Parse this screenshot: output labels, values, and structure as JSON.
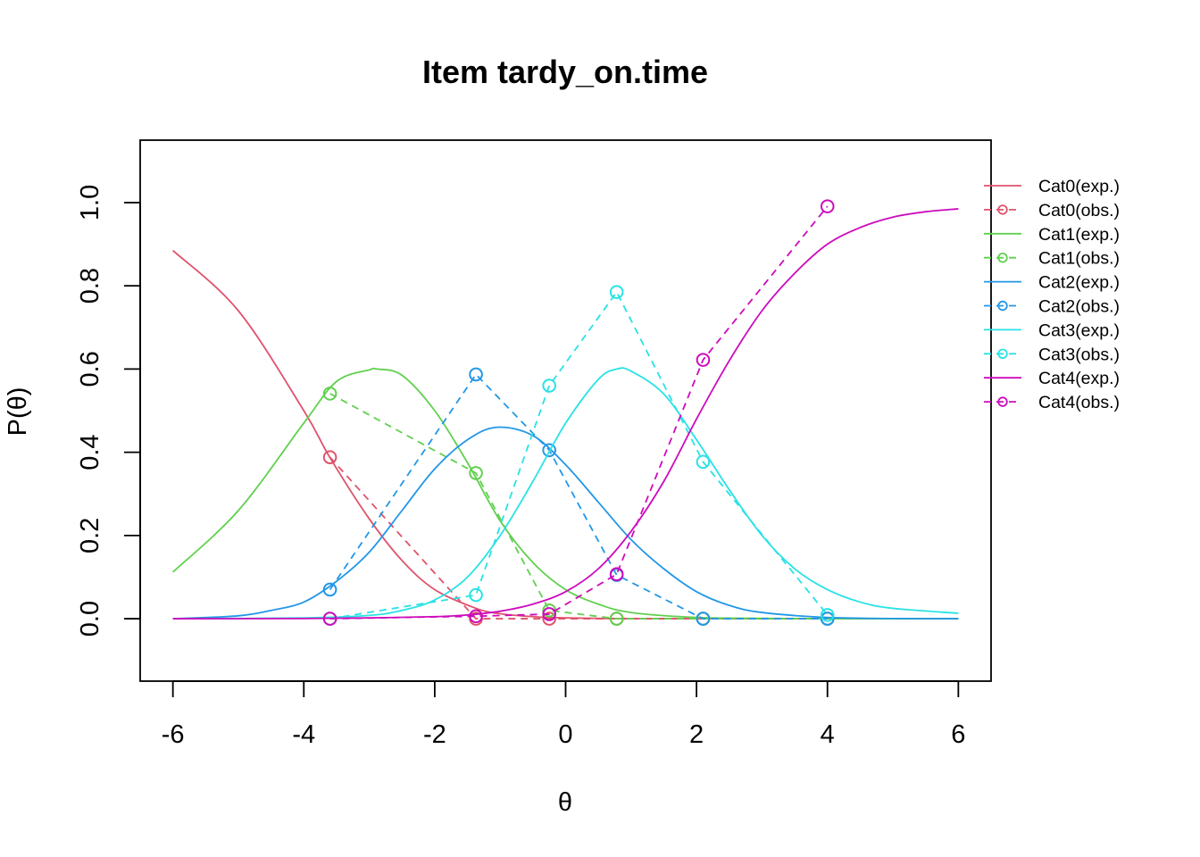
{
  "chart_data": {
    "type": "line",
    "title": "Item tardy_on.time",
    "xlabel": "θ",
    "ylabel": "P(θ)",
    "xlim": [
      -6.5,
      6.5
    ],
    "ylim": [
      -0.15,
      1.15
    ],
    "x_ticks": [
      -6,
      -4,
      -2,
      0,
      2,
      4,
      6
    ],
    "x_tick_labels": [
      "-6",
      "-4",
      "-2",
      "0",
      "2",
      "4",
      "6"
    ],
    "y_ticks": [
      0.0,
      0.2,
      0.4,
      0.6,
      0.8,
      1.0
    ],
    "y_tick_labels": [
      "0.0",
      "0.2",
      "0.4",
      "0.6",
      "0.8",
      "1.0"
    ],
    "grid": false,
    "legend_position": "right",
    "x_range_expected": [
      -6,
      6
    ],
    "observed_x": [
      -3.6,
      -1.37,
      -0.25,
      0.78,
      2.1,
      4.0
    ],
    "series": [
      {
        "name": "Cat0(exp.)",
        "kind": "expected",
        "color": "#DF536B",
        "x": [
          -6,
          -5,
          -4,
          -3.6,
          -3,
          -2.5,
          -2,
          -1.37,
          -1,
          -0.5,
          0,
          1,
          2,
          3,
          4,
          5,
          6
        ],
        "y": [
          0.885,
          0.74,
          0.5,
          0.387,
          0.24,
          0.14,
          0.07,
          0.025,
          0.012,
          0.005,
          0.002,
          0,
          0,
          0,
          0,
          0,
          0
        ]
      },
      {
        "name": "Cat0(obs.)",
        "kind": "observed",
        "color": "#DF536B",
        "x": [
          -3.6,
          -1.37,
          -0.25,
          0.78,
          2.1,
          4.0
        ],
        "y": [
          0.388,
          0.0,
          0.0,
          0.0,
          0.0,
          0.0
        ]
      },
      {
        "name": "Cat1(exp.)",
        "kind": "expected",
        "color": "#61D04F",
        "x": [
          -6,
          -5,
          -4,
          -3.5,
          -3,
          -2.88,
          -2.5,
          -2,
          -1.5,
          -1,
          -0.5,
          0,
          0.5,
          1,
          2,
          3,
          4,
          5,
          6
        ],
        "y": [
          0.112,
          0.26,
          0.47,
          0.57,
          0.598,
          0.6,
          0.585,
          0.5,
          0.375,
          0.235,
          0.135,
          0.07,
          0.035,
          0.015,
          0.003,
          0.001,
          0,
          0,
          0
        ]
      },
      {
        "name": "Cat1(obs.)",
        "kind": "observed",
        "color": "#61D04F",
        "x": [
          -3.6,
          -1.37,
          -0.25,
          0.78,
          2.1,
          4.0
        ],
        "y": [
          0.541,
          0.35,
          0.02,
          0.0,
          0.0,
          0.0
        ]
      },
      {
        "name": "Cat2(exp.)",
        "kind": "expected",
        "color": "#2297E6",
        "x": [
          -6,
          -5,
          -4.5,
          -4,
          -3.5,
          -3,
          -2.5,
          -2,
          -1.5,
          -1.05,
          -0.5,
          0,
          0.5,
          1,
          1.5,
          2,
          2.5,
          3,
          4,
          5,
          6
        ],
        "y": [
          0.0,
          0.007,
          0.02,
          0.04,
          0.09,
          0.16,
          0.26,
          0.36,
          0.43,
          0.46,
          0.44,
          0.37,
          0.28,
          0.19,
          0.12,
          0.065,
          0.032,
          0.015,
          0.003,
          0.0005,
          0
        ]
      },
      {
        "name": "Cat2(obs.)",
        "kind": "observed",
        "color": "#2297E6",
        "x": [
          -3.6,
          -1.37,
          -0.25,
          0.78,
          2.1,
          4.0
        ],
        "y": [
          0.07,
          0.587,
          0.405,
          0.105,
          0.0,
          0.0
        ]
      },
      {
        "name": "Cat3(exp.)",
        "kind": "expected",
        "color": "#28E2E5",
        "x": [
          -6,
          -4,
          -3,
          -2.5,
          -2,
          -1.5,
          -1,
          -0.5,
          0,
          0.5,
          0.78,
          1,
          1.5,
          2,
          2.5,
          3,
          3.5,
          4,
          4.5,
          5,
          6
        ],
        "y": [
          0.0,
          0.002,
          0.008,
          0.02,
          0.045,
          0.1,
          0.2,
          0.33,
          0.47,
          0.575,
          0.6,
          0.595,
          0.54,
          0.43,
          0.31,
          0.2,
          0.12,
          0.07,
          0.04,
          0.025,
          0.013
        ]
      },
      {
        "name": "Cat3(obs.)",
        "kind": "observed",
        "color": "#28E2E5",
        "x": [
          -3.6,
          -1.37,
          -0.25,
          0.78,
          2.1,
          4.0
        ],
        "y": [
          0.0,
          0.057,
          0.56,
          0.785,
          0.377,
          0.009
        ]
      },
      {
        "name": "Cat4(exp.)",
        "kind": "expected",
        "color": "#CD0BBC",
        "x": [
          -6,
          -4,
          -3,
          -2,
          -1.5,
          -1,
          -0.5,
          0,
          0.5,
          1,
          1.5,
          2,
          2.5,
          3,
          3.5,
          4,
          4.5,
          5,
          5.5,
          6
        ],
        "y": [
          0.0,
          0.0005,
          0.002,
          0.005,
          0.009,
          0.018,
          0.035,
          0.065,
          0.12,
          0.21,
          0.33,
          0.48,
          0.62,
          0.74,
          0.83,
          0.9,
          0.94,
          0.965,
          0.978,
          0.985
        ]
      },
      {
        "name": "Cat4(obs.)",
        "kind": "observed",
        "color": "#CD0BBC",
        "x": [
          -3.6,
          -1.37,
          -0.25,
          0.78,
          2.1,
          4.0
        ],
        "y": [
          0.0,
          0.006,
          0.011,
          0.107,
          0.622,
          0.991
        ]
      }
    ]
  }
}
